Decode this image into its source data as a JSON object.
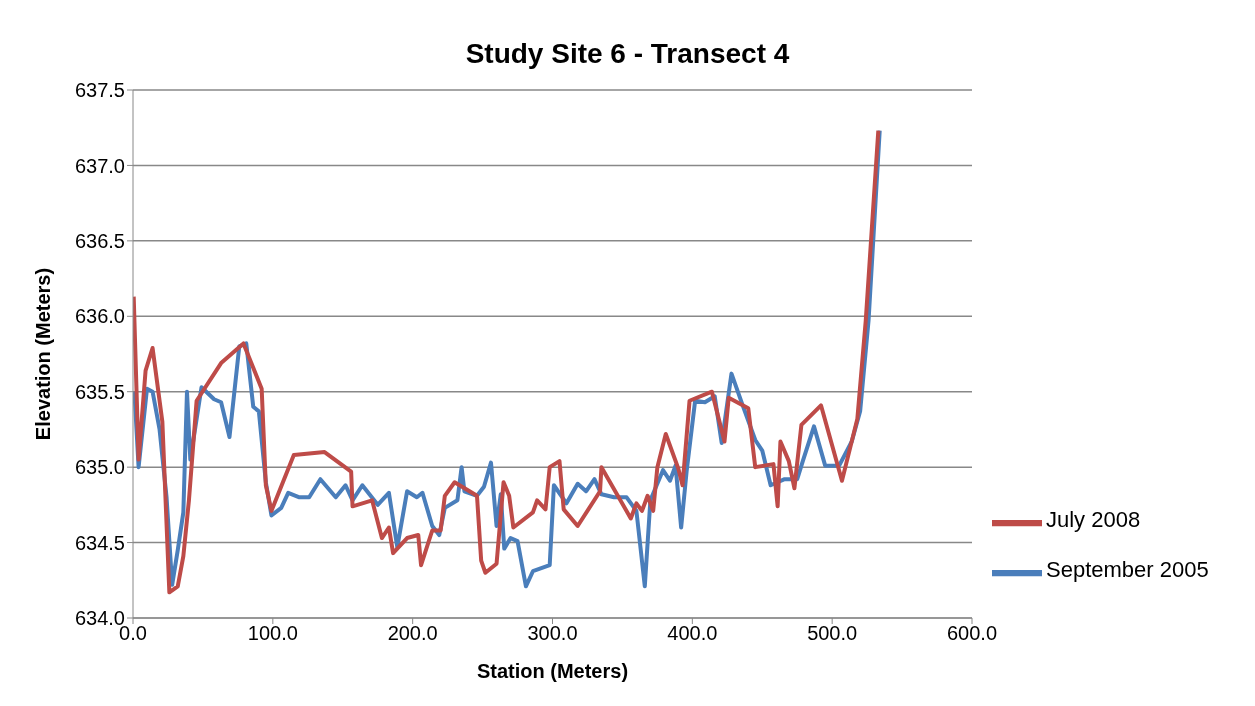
{
  "chart_data": {
    "type": "line",
    "title": "Study Site 6 - Transect 4",
    "xlabel": "Station (Meters)",
    "ylabel": "Elevation (Meters)",
    "xlim": [
      0,
      600
    ],
    "xticks": [
      {
        "value": 0,
        "label": "0.0"
      },
      {
        "value": 100,
        "label": "100.0"
      },
      {
        "value": 200,
        "label": "200.0"
      },
      {
        "value": 300,
        "label": "300.0"
      },
      {
        "value": 400,
        "label": "400.0"
      },
      {
        "value": 500,
        "label": "500.0"
      },
      {
        "value": 600,
        "label": "600.0"
      }
    ],
    "ylim": [
      634,
      637.5
    ],
    "yticks": [
      {
        "value": 634,
        "label": "634.0"
      },
      {
        "value": 634.5,
        "label": "634.5"
      },
      {
        "value": 635,
        "label": "635.0"
      },
      {
        "value": 635.5,
        "label": "635.5"
      },
      {
        "value": 636,
        "label": "636.0"
      },
      {
        "value": 636.5,
        "label": "636.5"
      },
      {
        "value": 637,
        "label": "637.0"
      },
      {
        "value": 637.5,
        "label": "637.5"
      }
    ],
    "grid": "y",
    "legend": "bottom right",
    "marker": "none",
    "line_style": "solid",
    "series": [
      {
        "name": "September 2005",
        "color": "#4a7ebb",
        "x": [
          1,
          4,
          10,
          14,
          19,
          24,
          28,
          32,
          36,
          38.6,
          41,
          49,
          58,
          63,
          69,
          76,
          81,
          86,
          90,
          95,
          99,
          106,
          111,
          119,
          126,
          134,
          145,
          152,
          157,
          164,
          175,
          183,
          189,
          196,
          203,
          207,
          214,
          219,
          223,
          232,
          235,
          237,
          246,
          251,
          256,
          260,
          263,
          265.5,
          270,
          275,
          281,
          286,
          292,
          298,
          301,
          310,
          318,
          324,
          330,
          335,
          344,
          353,
          360,
          366,
          370,
          379,
          384,
          388,
          392,
          396,
          402,
          409,
          416,
          421,
          428,
          436,
          445,
          450,
          456,
          466,
          475,
          479,
          487,
          495,
          505,
          514,
          520,
          526,
          534
        ],
        "values": [
          635.5,
          635.0,
          635.52,
          635.5,
          635.25,
          634.8,
          634.22,
          634.45,
          634.7,
          635.5,
          635.05,
          635.53,
          635.45,
          635.43,
          635.2,
          635.8,
          635.82,
          635.4,
          635.37,
          634.9,
          634.68,
          634.73,
          634.83,
          634.8,
          634.8,
          634.92,
          634.8,
          634.88,
          634.78,
          634.88,
          634.75,
          634.83,
          634.47,
          634.84,
          634.8,
          634.83,
          634.61,
          634.55,
          634.73,
          634.78,
          635.0,
          634.84,
          634.81,
          634.87,
          635.03,
          634.61,
          634.82,
          634.46,
          634.53,
          634.51,
          634.21,
          634.31,
          634.33,
          634.35,
          634.88,
          634.76,
          634.89,
          634.84,
          634.92,
          634.82,
          634.8,
          634.8,
          634.71,
          634.21,
          634.78,
          634.98,
          634.91,
          635.01,
          634.6,
          634.98,
          635.44,
          635.43,
          635.47,
          635.16,
          635.62,
          635.41,
          635.18,
          635.11,
          634.88,
          634.92,
          634.92,
          635.04,
          635.27,
          635.01,
          635.01,
          635.17,
          635.37,
          635.97,
          637.23
        ]
      },
      {
        "name": "July 2008",
        "color": "#be4b48",
        "x": [
          0.5,
          4,
          9,
          14,
          21,
          26,
          32,
          36,
          40,
          45.5,
          63,
          79,
          92,
          95,
          99,
          115,
          137,
          156,
          157,
          171,
          178,
          183,
          186,
          196,
          204,
          206,
          214,
          220,
          223,
          230,
          246,
          249,
          252,
          260,
          265,
          269,
          272,
          286,
          289,
          295,
          298,
          305,
          308,
          318,
          334,
          335,
          356,
          360,
          364,
          368,
          372,
          375,
          381,
          390,
          393,
          398,
          414,
          423,
          426,
          440,
          445,
          458,
          461,
          463,
          469,
          473,
          478,
          492,
          507,
          518,
          524,
          533
        ],
        "values": [
          636.13,
          635.05,
          635.64,
          635.79,
          635.3,
          634.17,
          634.21,
          634.41,
          634.78,
          635.44,
          635.69,
          635.82,
          635.52,
          634.88,
          634.71,
          635.08,
          635.1,
          634.97,
          634.74,
          634.78,
          634.53,
          634.6,
          634.43,
          634.53,
          634.55,
          634.35,
          634.58,
          634.58,
          634.81,
          634.9,
          634.81,
          634.38,
          634.3,
          634.36,
          634.9,
          634.81,
          634.6,
          634.7,
          634.78,
          634.72,
          635.0,
          635.04,
          634.72,
          634.61,
          634.84,
          635.0,
          634.66,
          634.76,
          634.71,
          634.81,
          634.71,
          635.0,
          635.22,
          634.99,
          634.88,
          635.44,
          635.5,
          635.17,
          635.46,
          635.39,
          635.0,
          635.02,
          634.74,
          635.17,
          635.04,
          634.86,
          635.28,
          635.41,
          634.91,
          635.32,
          635.97,
          637.23
        ]
      }
    ]
  }
}
